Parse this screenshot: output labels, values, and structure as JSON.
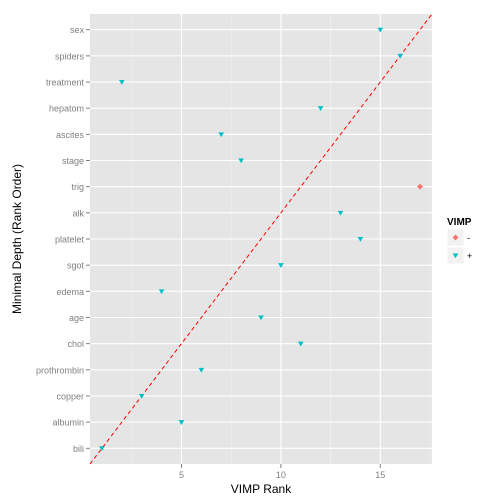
{
  "chart_data": {
    "type": "scatter",
    "title": "",
    "xlabel": "VIMP Rank",
    "ylabel": "Minimal Depth (Rank Order)",
    "xlim": [
      0.4,
      17.6
    ],
    "x_ticks": [
      5,
      10,
      15
    ],
    "y_categories": [
      "bili",
      "albumin",
      "copper",
      "prothrombin",
      "chol",
      "age",
      "edema",
      "sgot",
      "platelet",
      "alk",
      "trig",
      "stage",
      "ascites",
      "hepatom",
      "treatment",
      "spiders",
      "sex"
    ],
    "grid": true,
    "legend": {
      "title": "VIMP",
      "position": "right",
      "entries": [
        {
          "label": "-",
          "color": "#F8766D"
        },
        {
          "label": "+",
          "color": "#00BFC4"
        }
      ]
    },
    "reference_line": {
      "type": "identity",
      "style": "dashed",
      "color": "#FF0000"
    },
    "points": [
      {
        "label": "bili",
        "x": 1,
        "group": "+"
      },
      {
        "label": "albumin",
        "x": 5,
        "group": "+"
      },
      {
        "label": "copper",
        "x": 3,
        "group": "+"
      },
      {
        "label": "prothrombin",
        "x": 6,
        "group": "+"
      },
      {
        "label": "chol",
        "x": 11,
        "group": "+"
      },
      {
        "label": "age",
        "x": 9,
        "group": "+"
      },
      {
        "label": "edema",
        "x": 4,
        "group": "+"
      },
      {
        "label": "sgot",
        "x": 10,
        "group": "+"
      },
      {
        "label": "platelet",
        "x": 14,
        "group": "+"
      },
      {
        "label": "alk",
        "x": 13,
        "group": "+"
      },
      {
        "label": "trig",
        "x": 17,
        "group": "-"
      },
      {
        "label": "stage",
        "x": 8,
        "group": "+"
      },
      {
        "label": "ascites",
        "x": 7,
        "group": "+"
      },
      {
        "label": "hepatom",
        "x": 12,
        "group": "+"
      },
      {
        "label": "treatment",
        "x": 2,
        "group": "+"
      },
      {
        "label": "spiders",
        "x": 16,
        "group": "+"
      },
      {
        "label": "sex",
        "x": 15,
        "group": "+"
      }
    ]
  }
}
